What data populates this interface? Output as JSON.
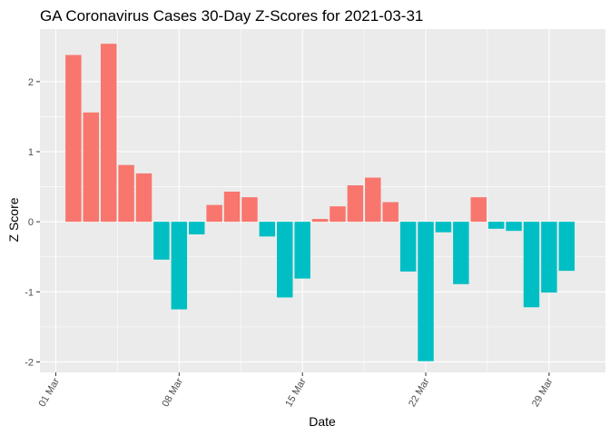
{
  "chart_data": {
    "type": "bar",
    "title": "GA Coronavirus Cases 30-Day Z-Scores for 2021-03-31",
    "xlabel": "Date",
    "ylabel": "Z Score",
    "x_ticks": [
      "01 Mar",
      "08 Mar",
      "15 Mar",
      "22 Mar",
      "29 Mar"
    ],
    "y_ticks": [
      -2,
      -1,
      0,
      1,
      2
    ],
    "ylim": [
      -2.15,
      2.75
    ],
    "xlim_days": [
      -0.9,
      31.2
    ],
    "grid": true,
    "legend": "none",
    "colors": {
      "positive": "#F8766D",
      "negative": "#00BFC4",
      "panel": "#EBEBEB",
      "grid": "#FFFFFF"
    },
    "dates": [
      "2021-03-02",
      "2021-03-03",
      "2021-03-04",
      "2021-03-05",
      "2021-03-06",
      "2021-03-07",
      "2021-03-08",
      "2021-03-09",
      "2021-03-10",
      "2021-03-11",
      "2021-03-12",
      "2021-03-13",
      "2021-03-14",
      "2021-03-15",
      "2021-03-16",
      "2021-03-17",
      "2021-03-18",
      "2021-03-19",
      "2021-03-20",
      "2021-03-21",
      "2021-03-22",
      "2021-03-23",
      "2021-03-24",
      "2021-03-25",
      "2021-03-26",
      "2021-03-27",
      "2021-03-28",
      "2021-03-29",
      "2021-03-30",
      "2021-03-31"
    ],
    "values": [
      2.38,
      1.56,
      2.54,
      0.81,
      0.69,
      -0.54,
      -1.25,
      -0.18,
      0.24,
      0.43,
      0.35,
      -0.21,
      -1.08,
      -0.81,
      0.04,
      0.22,
      0.52,
      0.63,
      0.28,
      -0.71,
      -1.99,
      -0.15,
      -0.89,
      0.35,
      -0.1,
      -0.13,
      -1.22,
      -1.01,
      -0.7,
      0.0
    ]
  }
}
